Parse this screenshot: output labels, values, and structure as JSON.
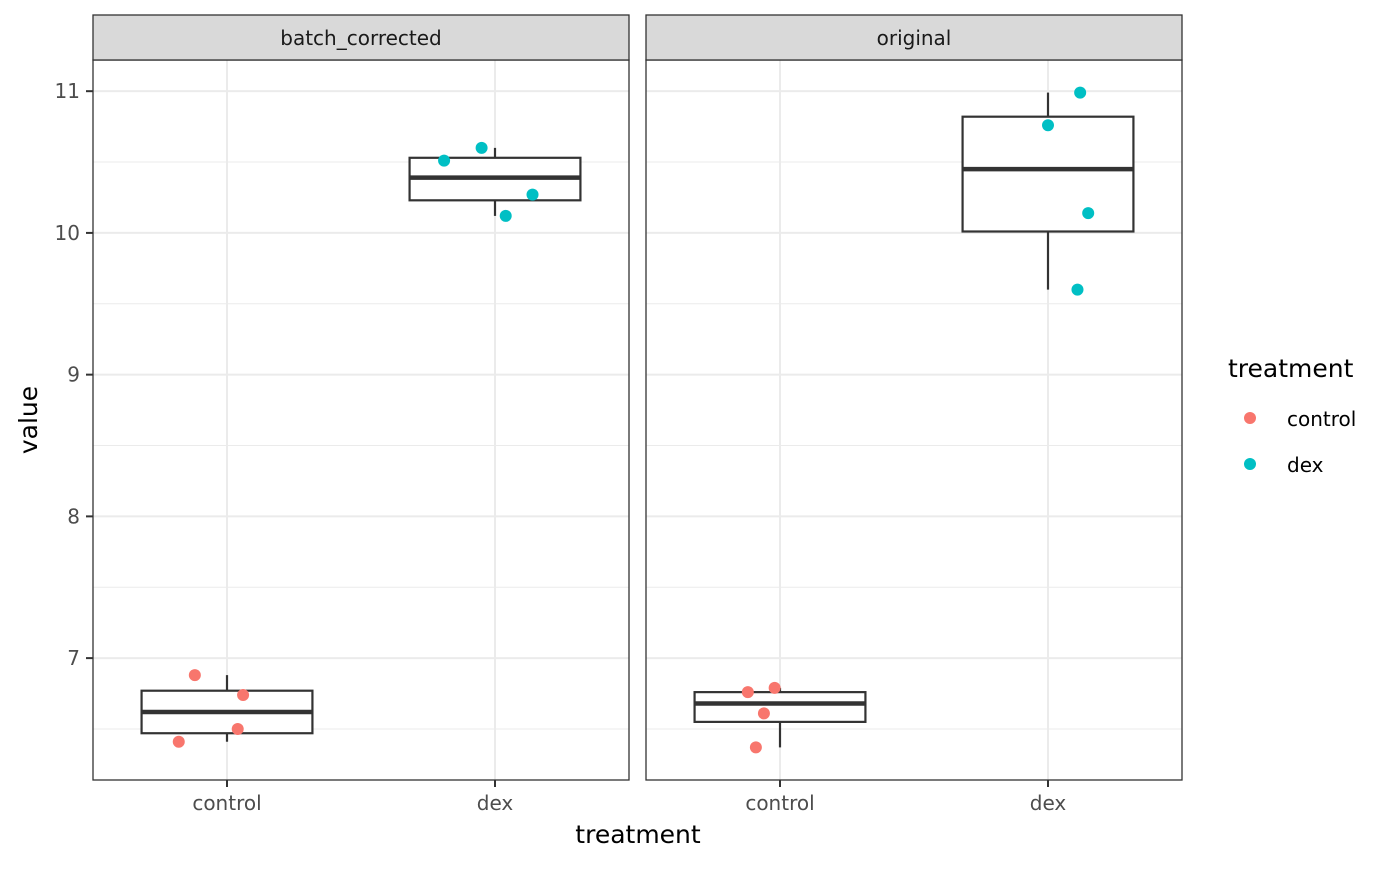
{
  "chart_data": {
    "type": "box",
    "xlabel": "treatment",
    "ylabel": "value",
    "categories": [
      "control",
      "dex"
    ],
    "ylim": [
      6.14,
      11.22
    ],
    "yticks": [
      7,
      8,
      9,
      10,
      11
    ],
    "grid": true,
    "legend": {
      "title": "treatment",
      "position": "right",
      "entries": [
        {
          "label": "control",
          "color": "#F8766D"
        },
        {
          "label": "dex",
          "color": "#00BFC4"
        }
      ]
    },
    "facets": [
      {
        "label": "batch_corrected",
        "boxes": [
          {
            "category": "control",
            "min": 6.41,
            "q1": 6.47,
            "median": 6.62,
            "q3": 6.77,
            "max": 6.88
          },
          {
            "category": "dex",
            "min": 10.12,
            "q1": 10.23,
            "median": 10.39,
            "q3": 10.53,
            "max": 10.6
          }
        ],
        "points": [
          {
            "category": "control",
            "value": 6.88,
            "jitter": -0.12
          },
          {
            "category": "control",
            "value": 6.74,
            "jitter": 0.06
          },
          {
            "category": "control",
            "value": 6.5,
            "jitter": 0.04
          },
          {
            "category": "control",
            "value": 6.41,
            "jitter": -0.18
          },
          {
            "category": "dex",
            "value": 10.6,
            "jitter": -0.05
          },
          {
            "category": "dex",
            "value": 10.51,
            "jitter": -0.19
          },
          {
            "category": "dex",
            "value": 10.27,
            "jitter": 0.14
          },
          {
            "category": "dex",
            "value": 10.12,
            "jitter": 0.04
          }
        ]
      },
      {
        "label": "original",
        "boxes": [
          {
            "category": "control",
            "min": 6.37,
            "q1": 6.55,
            "median": 6.68,
            "q3": 6.76,
            "max": 6.79
          },
          {
            "category": "dex",
            "min": 9.6,
            "q1": 10.01,
            "median": 10.45,
            "q3": 10.82,
            "max": 10.99
          }
        ],
        "points": [
          {
            "category": "control",
            "value": 6.79,
            "jitter": -0.02
          },
          {
            "category": "control",
            "value": 6.76,
            "jitter": -0.12
          },
          {
            "category": "control",
            "value": 6.61,
            "jitter": -0.06
          },
          {
            "category": "control",
            "value": 6.37,
            "jitter": -0.09
          },
          {
            "category": "dex",
            "value": 10.99,
            "jitter": 0.12
          },
          {
            "category": "dex",
            "value": 10.76,
            "jitter": 0.0
          },
          {
            "category": "dex",
            "value": 10.14,
            "jitter": 0.15
          },
          {
            "category": "dex",
            "value": 9.6,
            "jitter": 0.11
          }
        ]
      }
    ]
  }
}
